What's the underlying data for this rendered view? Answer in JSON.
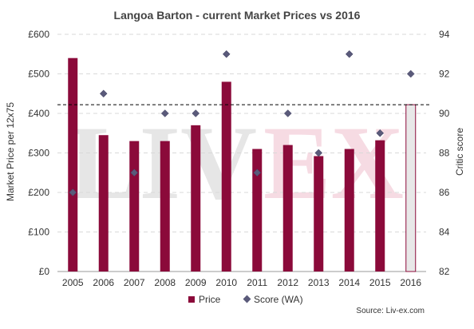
{
  "chart_data": {
    "type": "bar",
    "title": "Langoa Barton - current Market Prices vs 2016",
    "categories": [
      "2005",
      "2006",
      "2007",
      "2008",
      "2009",
      "2010",
      "2011",
      "2012",
      "2013",
      "2014",
      "2015",
      "2016"
    ],
    "series": [
      {
        "name": "Price",
        "type": "bar",
        "axis": "left",
        "values": [
          540,
          345,
          330,
          330,
          370,
          480,
          310,
          320,
          292,
          310,
          332,
          422
        ]
      },
      {
        "name": "Score (WA)",
        "type": "scatter",
        "axis": "right",
        "values": [
          86,
          91,
          87,
          90,
          90,
          93,
          87,
          90,
          88,
          93,
          89,
          92
        ]
      }
    ],
    "ylabel": "Market Price per 12x75",
    "y2label": "Critic score",
    "ylim": [
      0,
      600
    ],
    "y2lim": [
      82,
      94
    ],
    "yticks": [
      "£0",
      "£100",
      "£200",
      "£300",
      "£400",
      "£500",
      "£600"
    ],
    "y2ticks": [
      "82",
      "84",
      "86",
      "88",
      "90",
      "92",
      "94"
    ],
    "reference_line": {
      "value": 422,
      "style": "dashed"
    },
    "highlight_category": "2016",
    "watermark": "LIV-EX",
    "colors": {
      "bar": "#8b0a3a",
      "highlight_fill": "#e8e8e8",
      "marker": "#5a5a7a",
      "grid": "#d9d9d9"
    },
    "grid": true,
    "legend_position": "bottom"
  },
  "source": "Source: Liv-ex.com"
}
